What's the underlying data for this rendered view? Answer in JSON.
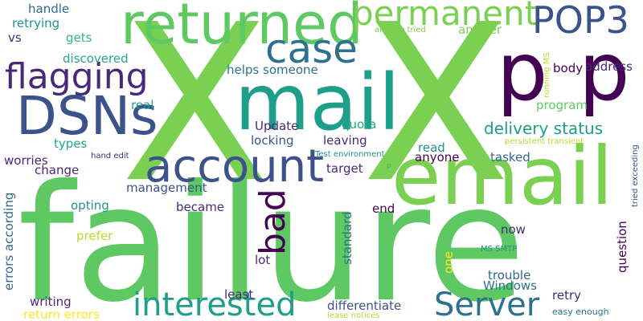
{
  "words": {
    "X_1": "X",
    "X_2": "X",
    "failure": "failure",
    "email": "email",
    "mail": "mail",
    "returned": "returned",
    "account": "account",
    "DSNs": "DSNs",
    "p_1": "p",
    "p_2": "p",
    "permanent": "permanent",
    "POP3": "POP3",
    "case": "case",
    "flagging": "flagging",
    "interested": "interested",
    "Server": "Server",
    "bad": "bad",
    "delivery_status": "delivery status",
    "address": "address",
    "body": "body",
    "helps_someone": "helps someone",
    "Update": "Update",
    "locking": "locking",
    "leaving": "leaving",
    "quota": "quota",
    "real": "real",
    "program": "program",
    "discovered": "discovered",
    "gets": "gets",
    "vs": "vs",
    "retrying": "retrying",
    "handle": "handle",
    "answer": "answer",
    "already_tried": "already tried",
    "running_MS": "running MS",
    "types": "types",
    "hand_edit": "hand edit",
    "Test_environment": "Test environment",
    "persistent_transient": "persistent transient",
    "read": "read",
    "anyone": "anyone",
    "tasked": "tasked",
    "worries": "worries",
    "change": "change",
    "target": "target",
    "p_small": "p",
    "management": "management",
    "opting": "opting",
    "became": "became",
    "end": "end",
    "prefer": "prefer",
    "now": "now",
    "errors_according": "errors according",
    "standard": "standard",
    "lot": "lot",
    "one": "one",
    "MS_SMTP": "MS SMTP",
    "trouble": "trouble",
    "Windows": "Windows",
    "question": "question",
    "tried_exceeding": "tried exceeding",
    "least": "least",
    "retry": "retry",
    "writing": "writing",
    "differentiate": "differentiate",
    "easy_enough": "easy enough",
    "return_errors": "return errors",
    "lease_notices": "lease notices"
  }
}
